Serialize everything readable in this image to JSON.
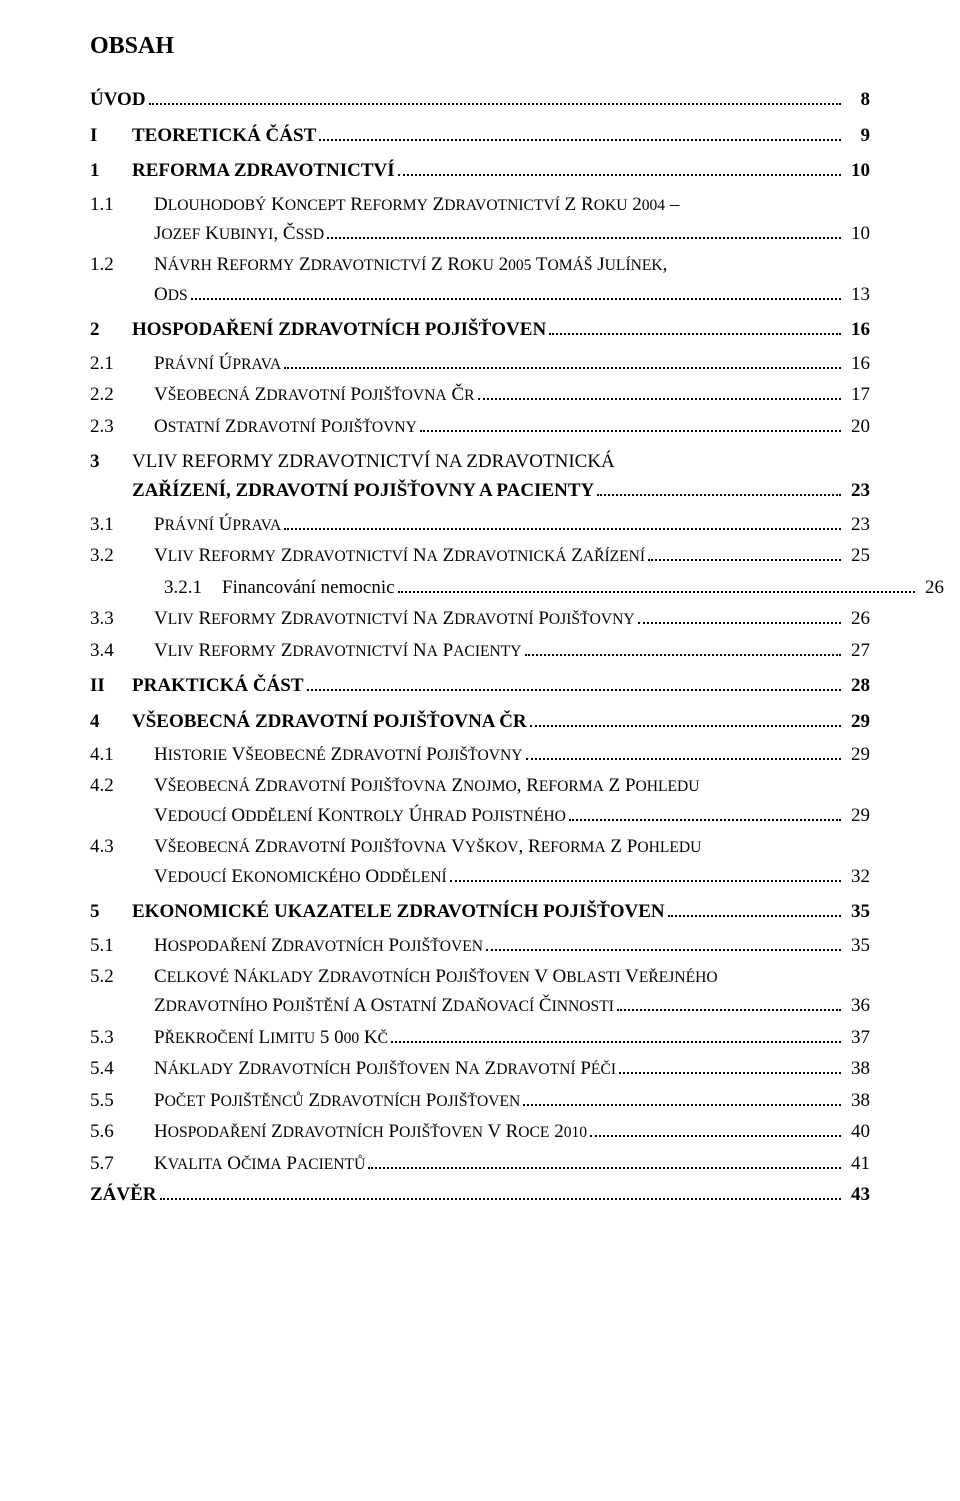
{
  "title": "OBSAH",
  "zaver_label": "ZÁVĚR",
  "zaver_page": "43",
  "entries": [
    {
      "level": 0,
      "bold": true,
      "num": "",
      "label": "ÚVOD",
      "page": "8"
    },
    {
      "level": 1,
      "bold": true,
      "num": "I",
      "label": "TEORETICKÁ ČÁST",
      "page": "9"
    },
    {
      "level": 1,
      "bold": true,
      "num": "1",
      "label": "REFORMA ZDRAVOTNICTVÍ",
      "page": "10"
    },
    {
      "level": 2,
      "bold": false,
      "num": "1.1",
      "label_sc": "DLOUHODOBÝ KONCEPT REFORMY ZDRAVOTNICTVÍ Z ROKU 2004 – JOZEF KUBINYI, ČSSD",
      "multiline": true,
      "split": "DLOUHODOBÝ KONCEPT REFORMY ZDRAVOTNICTVÍ Z ROKU 2004 –|JOZEF KUBINYI, ČSSD",
      "page": "10"
    },
    {
      "level": 2,
      "bold": false,
      "num": "1.2",
      "label_sc": "NÁVRH REFORMY ZDRAVOTNICTVÍ Z ROKU 2005 TOMÁŠ JULÍNEK, ODS",
      "multiline": true,
      "split": "NÁVRH REFORMY ZDRAVOTNICTVÍ Z ROKU 2005 TOMÁŠ JULÍNEK,|ODS",
      "page": "13"
    },
    {
      "level": 1,
      "bold": true,
      "num": "2",
      "label": "HOSPODAŘENÍ ZDRAVOTNÍCH POJIŠŤOVEN",
      "page": "16"
    },
    {
      "level": 2,
      "bold": false,
      "num": "2.1",
      "label_sc": "PRÁVNÍ ÚPRAVA",
      "page": "16"
    },
    {
      "level": 2,
      "bold": false,
      "num": "2.2",
      "label_sc": "VŠEOBECNÁ ZDRAVOTNÍ POJIŠŤOVNA ČR",
      "page": "17"
    },
    {
      "level": 2,
      "bold": false,
      "num": "2.3",
      "label_sc": "OSTATNÍ ZDRAVOTNÍ POJIŠŤOVNY",
      "page": "20"
    },
    {
      "level": 1,
      "bold": true,
      "num": "3",
      "label": "VLIV REFORMY ZDRAVOTNICTVÍ NA ZDRAVOTNICKÁ ZAŘÍZENÍ, ZDRAVOTNÍ POJIŠŤOVNY A PACIENTY",
      "multiline": true,
      "split": "VLIV REFORMY ZDRAVOTNICTVÍ NA ZDRAVOTNICKÁ|ZAŘÍZENÍ, ZDRAVOTNÍ POJIŠŤOVNY A PACIENTY",
      "page": "23"
    },
    {
      "level": 2,
      "bold": false,
      "num": "3.1",
      "label_sc": "PRÁVNÍ ÚPRAVA",
      "page": "23"
    },
    {
      "level": 2,
      "bold": false,
      "num": "3.2",
      "label_sc": "VLIV REFORMY ZDRAVOTNICTVÍ NA ZDRAVOTNICKÁ ZAŘÍZENÍ",
      "page": "25"
    },
    {
      "level": 3,
      "bold": false,
      "num": "3.2.1",
      "label": "Financování nemocnic",
      "page": "26"
    },
    {
      "level": 2,
      "bold": false,
      "num": "3.3",
      "label_sc": "VLIV REFORMY ZDRAVOTNICTVÍ NA ZDRAVOTNÍ POJIŠŤOVNY",
      "page": "26"
    },
    {
      "level": 2,
      "bold": false,
      "num": "3.4",
      "label_sc": "VLIV REFORMY ZDRAVOTNICTVÍ NA PACIENTY",
      "page": "27"
    },
    {
      "level": 1,
      "bold": true,
      "num": "II",
      "label": "PRAKTICKÁ ČÁST",
      "page": "28"
    },
    {
      "level": 1,
      "bold": true,
      "num": "4",
      "label": "VŠEOBECNÁ ZDRAVOTNÍ POJIŠŤOVNA ČR",
      "page": "29"
    },
    {
      "level": 2,
      "bold": false,
      "num": "4.1",
      "label_sc": "HISTORIE VŠEOBECNÉ ZDRAVOTNÍ POJIŠŤOVNY",
      "page": "29"
    },
    {
      "level": 2,
      "bold": false,
      "num": "4.2",
      "label_sc": "VŠEOBECNÁ ZDRAVOTNÍ POJIŠŤOVNA ZNOJMO, REFORMA Z POHLEDU VEDOUCÍ ODDĚLENÍ KONTROLY ÚHRAD POJISTNÉHO",
      "multiline": true,
      "split": "VŠEOBECNÁ ZDRAVOTNÍ POJIŠŤOVNA ZNOJMO, REFORMA Z POHLEDU|VEDOUCÍ ODDĚLENÍ KONTROLY ÚHRAD POJISTNÉHO",
      "page": "29"
    },
    {
      "level": 2,
      "bold": false,
      "num": "4.3",
      "label_sc": "VŠEOBECNÁ ZDRAVOTNÍ POJIŠŤOVNA VYŠKOV, REFORMA Z POHLEDU VEDOUCÍ EKONOMICKÉHO ODDĚLENÍ",
      "multiline": true,
      "split": "VŠEOBECNÁ ZDRAVOTNÍ POJIŠŤOVNA VYŠKOV, REFORMA Z POHLEDU|VEDOUCÍ EKONOMICKÉHO ODDĚLENÍ",
      "page": "32"
    },
    {
      "level": 1,
      "bold": true,
      "num": "5",
      "label": "EKONOMICKÉ UKAZATELE ZDRAVOTNÍCH POJIŠŤOVEN",
      "page": "35"
    },
    {
      "level": 2,
      "bold": false,
      "num": "5.1",
      "label_sc": "HOSPODAŘENÍ ZDRAVOTNÍCH POJIŠŤOVEN",
      "page": "35"
    },
    {
      "level": 2,
      "bold": false,
      "num": "5.2",
      "label_sc": "CELKOVÉ NÁKLADY ZDRAVOTNÍCH POJIŠŤOVEN V OBLASTI VEŘEJNÉHO ZDRAVOTNÍHO POJIŠTĚNÍ A OSTATNÍ ZDAŇOVACÍ ČINNOSTI",
      "multiline": true,
      "split": "CELKOVÉ NÁKLADY ZDRAVOTNÍCH POJIŠŤOVEN V OBLASTI VEŘEJNÉHO|ZDRAVOTNÍHO POJIŠTĚNÍ A OSTATNÍ ZDAŇOVACÍ ČINNOSTI",
      "page": "36"
    },
    {
      "level": 2,
      "bold": false,
      "num": "5.3",
      "label_sc": "PŘEKROČENÍ LIMITU 5 000 KČ",
      "page": "37"
    },
    {
      "level": 2,
      "bold": false,
      "num": "5.4",
      "label_sc": "NÁKLADY ZDRAVOTNÍCH POJIŠŤOVEN NA ZDRAVOTNÍ PÉČI",
      "page": "38"
    },
    {
      "level": 2,
      "bold": false,
      "num": "5.5",
      "label_sc": "POČET POJIŠTĚNCŮ ZDRAVOTNÍCH POJIŠŤOVEN",
      "page": "38"
    },
    {
      "level": 2,
      "bold": false,
      "num": "5.6",
      "label_sc": "HOSPODAŘENÍ ZDRAVOTNÍCH POJIŠŤOVEN V ROCE 2010",
      "page": "40"
    },
    {
      "level": 2,
      "bold": false,
      "num": "5.7",
      "label_sc": "KVALITA OČIMA PACIENTŮ",
      "page": "41"
    }
  ]
}
